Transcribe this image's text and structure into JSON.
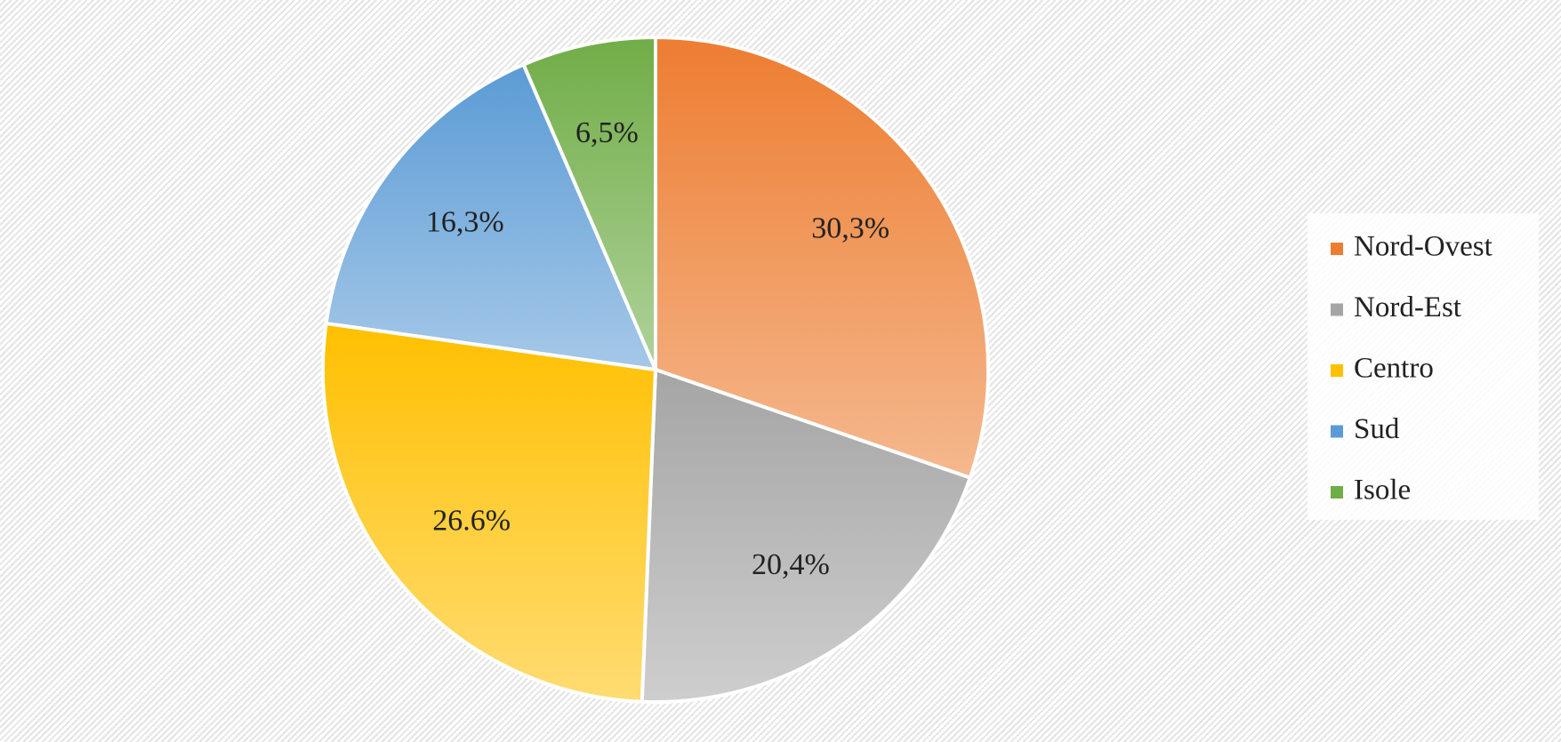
{
  "chart_data": {
    "type": "pie",
    "categories": [
      "Nord-Ovest",
      "Nord-Est",
      "Centro",
      "Sud",
      "Isole"
    ],
    "values": [
      30.3,
      20.4,
      26.6,
      16.3,
      6.5
    ],
    "value_labels": [
      "30,3%",
      "20,4%",
      "26.6%",
      "16,3%",
      "6,5%"
    ],
    "colors": [
      "#ed7d31",
      "#a5a5a5",
      "#ffc000",
      "#5b9bd5",
      "#70ad47"
    ],
    "legend": "right"
  }
}
